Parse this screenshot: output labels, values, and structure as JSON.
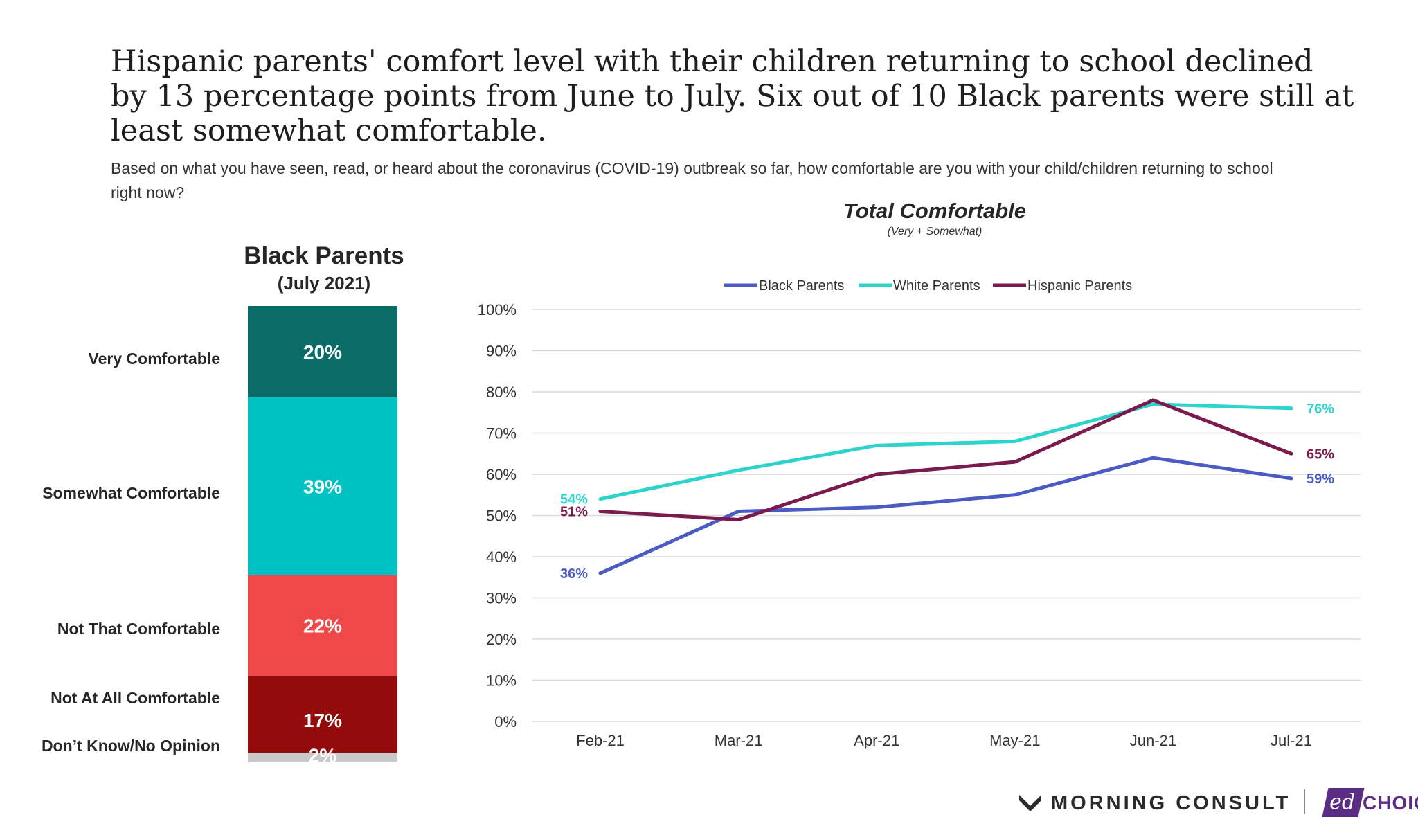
{
  "headline": "Hispanic parents' comfort level with their children returning to school declined by 13 percentage points from June to July. Six out of 10 Black parents were still at least somewhat comfortable.",
  "question": "Based on what you have seen, read, or heard about the coronavirus (COVID-19) outbreak so far, how comfortable are you with your child/children returning to school right now?",
  "colors": {
    "very_comfortable": "#0b6b67",
    "somewhat_comfortable": "#00c2c2",
    "not_that_comfortable": "#f04848",
    "not_at_all_comfortable": "#940b0b",
    "dont_know": "#c9c9c9",
    "black_parents": "#4a5bc4",
    "white_parents": "#2ed3cb",
    "hispanic_parents": "#7a1a4d",
    "gridline": "#d9d9d9"
  },
  "footer": {
    "morning_consult": "MORNING CONSULT",
    "edchoice_mark": "ed",
    "edchoice_text": "CHOICE",
    "morning_consult_icon": "morning-consult-m-icon"
  },
  "chart_data": [
    {
      "type": "bar",
      "stacked": true,
      "title": "Black Parents",
      "subtitle": "(July 2021)",
      "categories": [
        "Very Comfortable",
        "Somewhat Comfortable",
        "Not That Comfortable",
        "Not At All Comfortable",
        "Don’t Know/No Opinion"
      ],
      "values": [
        20,
        39,
        22,
        17,
        2
      ],
      "value_labels": [
        "20%",
        "39%",
        "22%",
        "17%",
        "2%"
      ],
      "colors": [
        "#0b6b67",
        "#00c2c2",
        "#f04848",
        "#940b0b",
        "#c9c9c9"
      ]
    },
    {
      "type": "line",
      "title": "Total Comfortable",
      "subtitle": "(Very + Somewhat)",
      "x": [
        "Feb-21",
        "Mar-21",
        "Apr-21",
        "May-21",
        "Jun-21",
        "Jul-21"
      ],
      "ylim": [
        0,
        100
      ],
      "yticks": [
        "0%",
        "10%",
        "20%",
        "30%",
        "40%",
        "50%",
        "60%",
        "70%",
        "80%",
        "90%",
        "100%"
      ],
      "grid": true,
      "legend_position": "top",
      "series": [
        {
          "name": "Black Parents",
          "values": [
            36,
            51,
            52,
            55,
            64,
            59
          ],
          "color": "#4a5bc4",
          "start_label": "36%",
          "end_label": "59%"
        },
        {
          "name": "White Parents",
          "values": [
            54,
            61,
            67,
            68,
            77,
            76
          ],
          "color": "#2ed3cb",
          "start_label": "54%",
          "end_label": "76%"
        },
        {
          "name": "Hispanic Parents",
          "values": [
            51,
            49,
            60,
            63,
            78,
            65
          ],
          "color": "#7a1a4d",
          "start_label": "51%",
          "end_label": "65%"
        }
      ]
    }
  ]
}
